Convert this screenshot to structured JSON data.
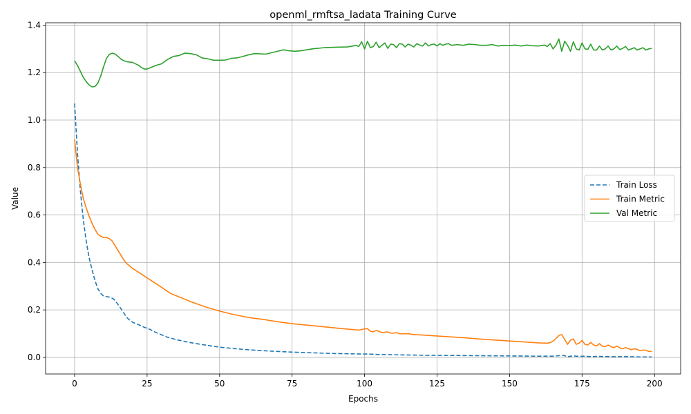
{
  "chart_data": {
    "type": "line",
    "title": "openml_rmftsa_ladata Training Curve",
    "xlabel": "Epochs",
    "ylabel": "Value",
    "xlim": [
      -10,
      209
    ],
    "ylim": [
      -0.07,
      1.41
    ],
    "xticks": [
      0,
      25,
      50,
      75,
      100,
      125,
      150,
      175,
      200
    ],
    "yticks": [
      0.0,
      0.2,
      0.4,
      0.6,
      0.8,
      1.0,
      1.2,
      1.4
    ],
    "ytick_labels": [
      "0.0",
      "0.2",
      "0.4",
      "0.6",
      "0.8",
      "1.0",
      "1.2",
      "1.4"
    ],
    "grid": true,
    "legend_position": "center-right",
    "series": [
      {
        "name": "Train Loss",
        "color": "#1f77b4",
        "dash": "dashed",
        "points": [
          [
            0,
            1.07
          ],
          [
            1,
            0.86
          ],
          [
            2,
            0.7
          ],
          [
            3,
            0.58
          ],
          [
            4,
            0.49
          ],
          [
            5,
            0.42
          ],
          [
            6,
            0.37
          ],
          [
            7,
            0.325
          ],
          [
            8,
            0.29
          ],
          [
            9,
            0.27
          ],
          [
            10,
            0.258
          ],
          [
            11,
            0.256
          ],
          [
            12,
            0.254
          ],
          [
            13,
            0.249
          ],
          [
            14,
            0.24
          ],
          [
            15,
            0.222
          ],
          [
            16,
            0.205
          ],
          [
            17,
            0.186
          ],
          [
            18,
            0.168
          ],
          [
            19,
            0.157
          ],
          [
            20,
            0.148
          ],
          [
            22,
            0.138
          ],
          [
            24,
            0.127
          ],
          [
            26,
            0.118
          ],
          [
            28,
            0.105
          ],
          [
            30,
            0.095
          ],
          [
            32,
            0.085
          ],
          [
            35,
            0.075
          ],
          [
            40,
            0.062
          ],
          [
            45,
            0.052
          ],
          [
            50,
            0.043
          ],
          [
            55,
            0.037
          ],
          [
            60,
            0.032
          ],
          [
            65,
            0.028
          ],
          [
            70,
            0.025
          ],
          [
            75,
            0.022
          ],
          [
            80,
            0.02
          ],
          [
            85,
            0.018
          ],
          [
            90,
            0.016
          ],
          [
            95,
            0.015
          ],
          [
            100,
            0.014
          ],
          [
            101,
            0.014
          ],
          [
            105,
            0.012
          ],
          [
            110,
            0.011
          ],
          [
            120,
            0.009
          ],
          [
            130,
            0.008
          ],
          [
            140,
            0.007
          ],
          [
            150,
            0.006
          ],
          [
            160,
            0.005
          ],
          [
            165,
            0.005
          ],
          [
            167,
            0.007
          ],
          [
            168,
            0.009
          ],
          [
            169,
            0.007
          ],
          [
            170,
            0.003
          ],
          [
            172,
            0.006
          ],
          [
            174,
            0.004
          ],
          [
            176,
            0.005
          ],
          [
            178,
            0.003
          ],
          [
            180,
            0.004
          ],
          [
            185,
            0.003
          ],
          [
            190,
            0.003
          ],
          [
            195,
            0.002
          ],
          [
            199,
            0.002
          ]
        ]
      },
      {
        "name": "Train Metric",
        "color": "#ff7f0e",
        "dash": "solid",
        "points": [
          [
            0,
            0.92
          ],
          [
            1,
            0.8
          ],
          [
            2,
            0.73
          ],
          [
            3,
            0.67
          ],
          [
            4,
            0.63
          ],
          [
            5,
            0.595
          ],
          [
            6,
            0.565
          ],
          [
            7,
            0.54
          ],
          [
            8,
            0.52
          ],
          [
            9,
            0.51
          ],
          [
            10,
            0.505
          ],
          [
            11,
            0.505
          ],
          [
            12,
            0.5
          ],
          [
            13,
            0.49
          ],
          [
            14,
            0.47
          ],
          [
            15,
            0.45
          ],
          [
            16,
            0.43
          ],
          [
            17,
            0.41
          ],
          [
            18,
            0.395
          ],
          [
            19,
            0.385
          ],
          [
            20,
            0.375
          ],
          [
            25,
            0.335
          ],
          [
            30,
            0.295
          ],
          [
            33,
            0.27
          ],
          [
            35,
            0.26
          ],
          [
            40,
            0.235
          ],
          [
            45,
            0.213
          ],
          [
            50,
            0.195
          ],
          [
            55,
            0.18
          ],
          [
            60,
            0.168
          ],
          [
            65,
            0.16
          ],
          [
            70,
            0.15
          ],
          [
            75,
            0.142
          ],
          [
            80,
            0.136
          ],
          [
            85,
            0.13
          ],
          [
            90,
            0.124
          ],
          [
            95,
            0.118
          ],
          [
            98,
            0.115
          ],
          [
            100,
            0.12
          ],
          [
            101,
            0.121
          ],
          [
            102,
            0.11
          ],
          [
            103,
            0.108
          ],
          [
            104,
            0.113
          ],
          [
            105,
            0.11
          ],
          [
            106,
            0.104
          ],
          [
            107,
            0.106
          ],
          [
            108,
            0.107
          ],
          [
            109,
            0.102
          ],
          [
            110,
            0.102
          ],
          [
            111,
            0.104
          ],
          [
            112,
            0.1
          ],
          [
            113,
            0.099
          ],
          [
            115,
            0.1
          ],
          [
            117,
            0.096
          ],
          [
            120,
            0.094
          ],
          [
            125,
            0.09
          ],
          [
            130,
            0.086
          ],
          [
            135,
            0.082
          ],
          [
            140,
            0.077
          ],
          [
            145,
            0.073
          ],
          [
            150,
            0.069
          ],
          [
            155,
            0.065
          ],
          [
            160,
            0.061
          ],
          [
            163,
            0.06
          ],
          [
            164,
            0.062
          ],
          [
            165,
            0.068
          ],
          [
            166,
            0.08
          ],
          [
            167,
            0.092
          ],
          [
            168,
            0.096
          ],
          [
            169,
            0.075
          ],
          [
            170,
            0.055
          ],
          [
            171,
            0.072
          ],
          [
            172,
            0.078
          ],
          [
            173,
            0.055
          ],
          [
            174,
            0.06
          ],
          [
            175,
            0.072
          ],
          [
            176,
            0.055
          ],
          [
            177,
            0.052
          ],
          [
            178,
            0.063
          ],
          [
            179,
            0.052
          ],
          [
            180,
            0.048
          ],
          [
            181,
            0.058
          ],
          [
            182,
            0.047
          ],
          [
            183,
            0.045
          ],
          [
            184,
            0.052
          ],
          [
            185,
            0.045
          ],
          [
            186,
            0.041
          ],
          [
            187,
            0.048
          ],
          [
            188,
            0.04
          ],
          [
            189,
            0.036
          ],
          [
            190,
            0.041
          ],
          [
            191,
            0.037
          ],
          [
            192,
            0.032
          ],
          [
            193,
            0.036
          ],
          [
            194,
            0.034
          ],
          [
            195,
            0.028
          ],
          [
            196,
            0.031
          ],
          [
            197,
            0.03
          ],
          [
            198,
            0.025
          ],
          [
            199,
            0.025
          ]
        ]
      },
      {
        "name": "Val Metric",
        "color": "#2ca02c",
        "dash": "solid",
        "points": [
          [
            0,
            1.25
          ],
          [
            1,
            1.23
          ],
          [
            2,
            1.205
          ],
          [
            3,
            1.18
          ],
          [
            4,
            1.162
          ],
          [
            5,
            1.148
          ],
          [
            6,
            1.14
          ],
          [
            7,
            1.141
          ],
          [
            8,
            1.155
          ],
          [
            9,
            1.185
          ],
          [
            10,
            1.225
          ],
          [
            11,
            1.26
          ],
          [
            12,
            1.277
          ],
          [
            13,
            1.282
          ],
          [
            14,
            1.278
          ],
          [
            15,
            1.268
          ],
          [
            16,
            1.257
          ],
          [
            17,
            1.25
          ],
          [
            18,
            1.246
          ],
          [
            20,
            1.243
          ],
          [
            22,
            1.231
          ],
          [
            23,
            1.222
          ],
          [
            24,
            1.215
          ],
          [
            25,
            1.215
          ],
          [
            26,
            1.22
          ],
          [
            28,
            1.23
          ],
          [
            30,
            1.237
          ],
          [
            32,
            1.255
          ],
          [
            34,
            1.268
          ],
          [
            36,
            1.272
          ],
          [
            38,
            1.282
          ],
          [
            40,
            1.28
          ],
          [
            42,
            1.275
          ],
          [
            44,
            1.262
          ],
          [
            46,
            1.258
          ],
          [
            48,
            1.252
          ],
          [
            50,
            1.252
          ],
          [
            52,
            1.253
          ],
          [
            54,
            1.26
          ],
          [
            56,
            1.262
          ],
          [
            58,
            1.268
          ],
          [
            60,
            1.275
          ],
          [
            62,
            1.28
          ],
          [
            66,
            1.278
          ],
          [
            70,
            1.29
          ],
          [
            72,
            1.296
          ],
          [
            74,
            1.292
          ],
          [
            76,
            1.29
          ],
          [
            78,
            1.292
          ],
          [
            82,
            1.3
          ],
          [
            86,
            1.305
          ],
          [
            90,
            1.307
          ],
          [
            94,
            1.308
          ],
          [
            96,
            1.312
          ],
          [
            97,
            1.315
          ],
          [
            98,
            1.31
          ],
          [
            99,
            1.33
          ],
          [
            100,
            1.3
          ],
          [
            101,
            1.332
          ],
          [
            102,
            1.305
          ],
          [
            103,
            1.31
          ],
          [
            104,
            1.328
          ],
          [
            105,
            1.305
          ],
          [
            106,
            1.315
          ],
          [
            107,
            1.325
          ],
          [
            108,
            1.302
          ],
          [
            109,
            1.32
          ],
          [
            110,
            1.318
          ],
          [
            111,
            1.305
          ],
          [
            112,
            1.322
          ],
          [
            113,
            1.32
          ],
          [
            114,
            1.308
          ],
          [
            115,
            1.32
          ],
          [
            116,
            1.315
          ],
          [
            117,
            1.308
          ],
          [
            118,
            1.322
          ],
          [
            119,
            1.316
          ],
          [
            120,
            1.312
          ],
          [
            121,
            1.325
          ],
          [
            122,
            1.312
          ],
          [
            123,
            1.318
          ],
          [
            124,
            1.32
          ],
          [
            125,
            1.312
          ],
          [
            126,
            1.322
          ],
          [
            127,
            1.315
          ],
          [
            128,
            1.32
          ],
          [
            129,
            1.322
          ],
          [
            130,
            1.315
          ],
          [
            132,
            1.318
          ],
          [
            134,
            1.315
          ],
          [
            136,
            1.32
          ],
          [
            138,
            1.318
          ],
          [
            140,
            1.315
          ],
          [
            142,
            1.315
          ],
          [
            144,
            1.318
          ],
          [
            146,
            1.312
          ],
          [
            148,
            1.315
          ],
          [
            150,
            1.314
          ],
          [
            152,
            1.316
          ],
          [
            154,
            1.312
          ],
          [
            156,
            1.316
          ],
          [
            158,
            1.313
          ],
          [
            160,
            1.312
          ],
          [
            162,
            1.316
          ],
          [
            163,
            1.31
          ],
          [
            164,
            1.322
          ],
          [
            165,
            1.3
          ],
          [
            166,
            1.315
          ],
          [
            167,
            1.342
          ],
          [
            168,
            1.29
          ],
          [
            169,
            1.332
          ],
          [
            170,
            1.315
          ],
          [
            171,
            1.29
          ],
          [
            172,
            1.33
          ],
          [
            173,
            1.3
          ],
          [
            174,
            1.295
          ],
          [
            175,
            1.325
          ],
          [
            176,
            1.3
          ],
          [
            177,
            1.298
          ],
          [
            178,
            1.32
          ],
          [
            179,
            1.295
          ],
          [
            180,
            1.295
          ],
          [
            181,
            1.312
          ],
          [
            182,
            1.295
          ],
          [
            183,
            1.3
          ],
          [
            184,
            1.312
          ],
          [
            185,
            1.295
          ],
          [
            186,
            1.3
          ],
          [
            187,
            1.312
          ],
          [
            188,
            1.297
          ],
          [
            189,
            1.302
          ],
          [
            190,
            1.31
          ],
          [
            191,
            1.295
          ],
          [
            192,
            1.3
          ],
          [
            193,
            1.305
          ],
          [
            194,
            1.295
          ],
          [
            195,
            1.3
          ],
          [
            196,
            1.305
          ],
          [
            197,
            1.295
          ],
          [
            198,
            1.3
          ],
          [
            199,
            1.302
          ]
        ]
      }
    ]
  }
}
